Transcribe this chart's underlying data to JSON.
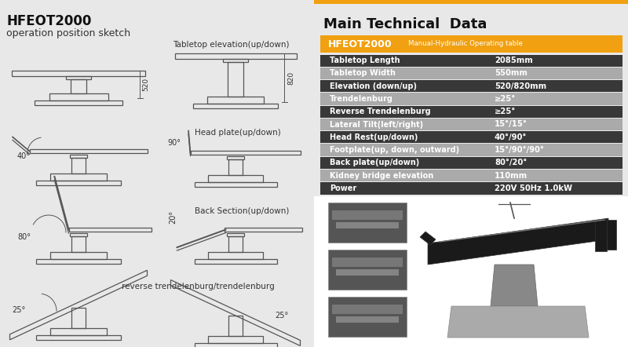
{
  "bg_color": "#e8e8e8",
  "title1": "HFEOT2000",
  "title2": "operation position sketch",
  "main_title": "Main Technical  Data",
  "orange_label": "HFEOT2000",
  "orange_sublabel": "Manual-Hydraulic Operating table",
  "orange_color": "#f0a010",
  "dark_color": "#383838",
  "light_color": "#aaaaaa",
  "table_rows": [
    {
      "label": "Tabletop Length",
      "value": "2085mm",
      "dark": true
    },
    {
      "label": "Tabletop Width",
      "value": "550mm",
      "dark": false
    },
    {
      "label": "Elevation (down/up)",
      "value": "520/820mm",
      "dark": true
    },
    {
      "label": "Trendelenburg",
      "value": "≥25°",
      "dark": false
    },
    {
      "label": "Reverse Trendelenburg",
      "value": "≥25°",
      "dark": true
    },
    {
      "label": "Lateral Tilt(left/right)",
      "value": "15°/15°",
      "dark": false
    },
    {
      "label": "Head Rest(up/down)",
      "value": "40°/90°",
      "dark": true
    },
    {
      "label": "Footplate(up, down, outward)",
      "value": "15°/90°/90°",
      "dark": false
    },
    {
      "label": "Back plate(up/down)",
      "value": "80°/20°",
      "dark": true
    },
    {
      "label": "Kidney bridge elevation",
      "value": "110mm",
      "dark": false
    },
    {
      "label": "Power",
      "value": "220V 50Hz 1.0kW",
      "dark": true
    }
  ]
}
